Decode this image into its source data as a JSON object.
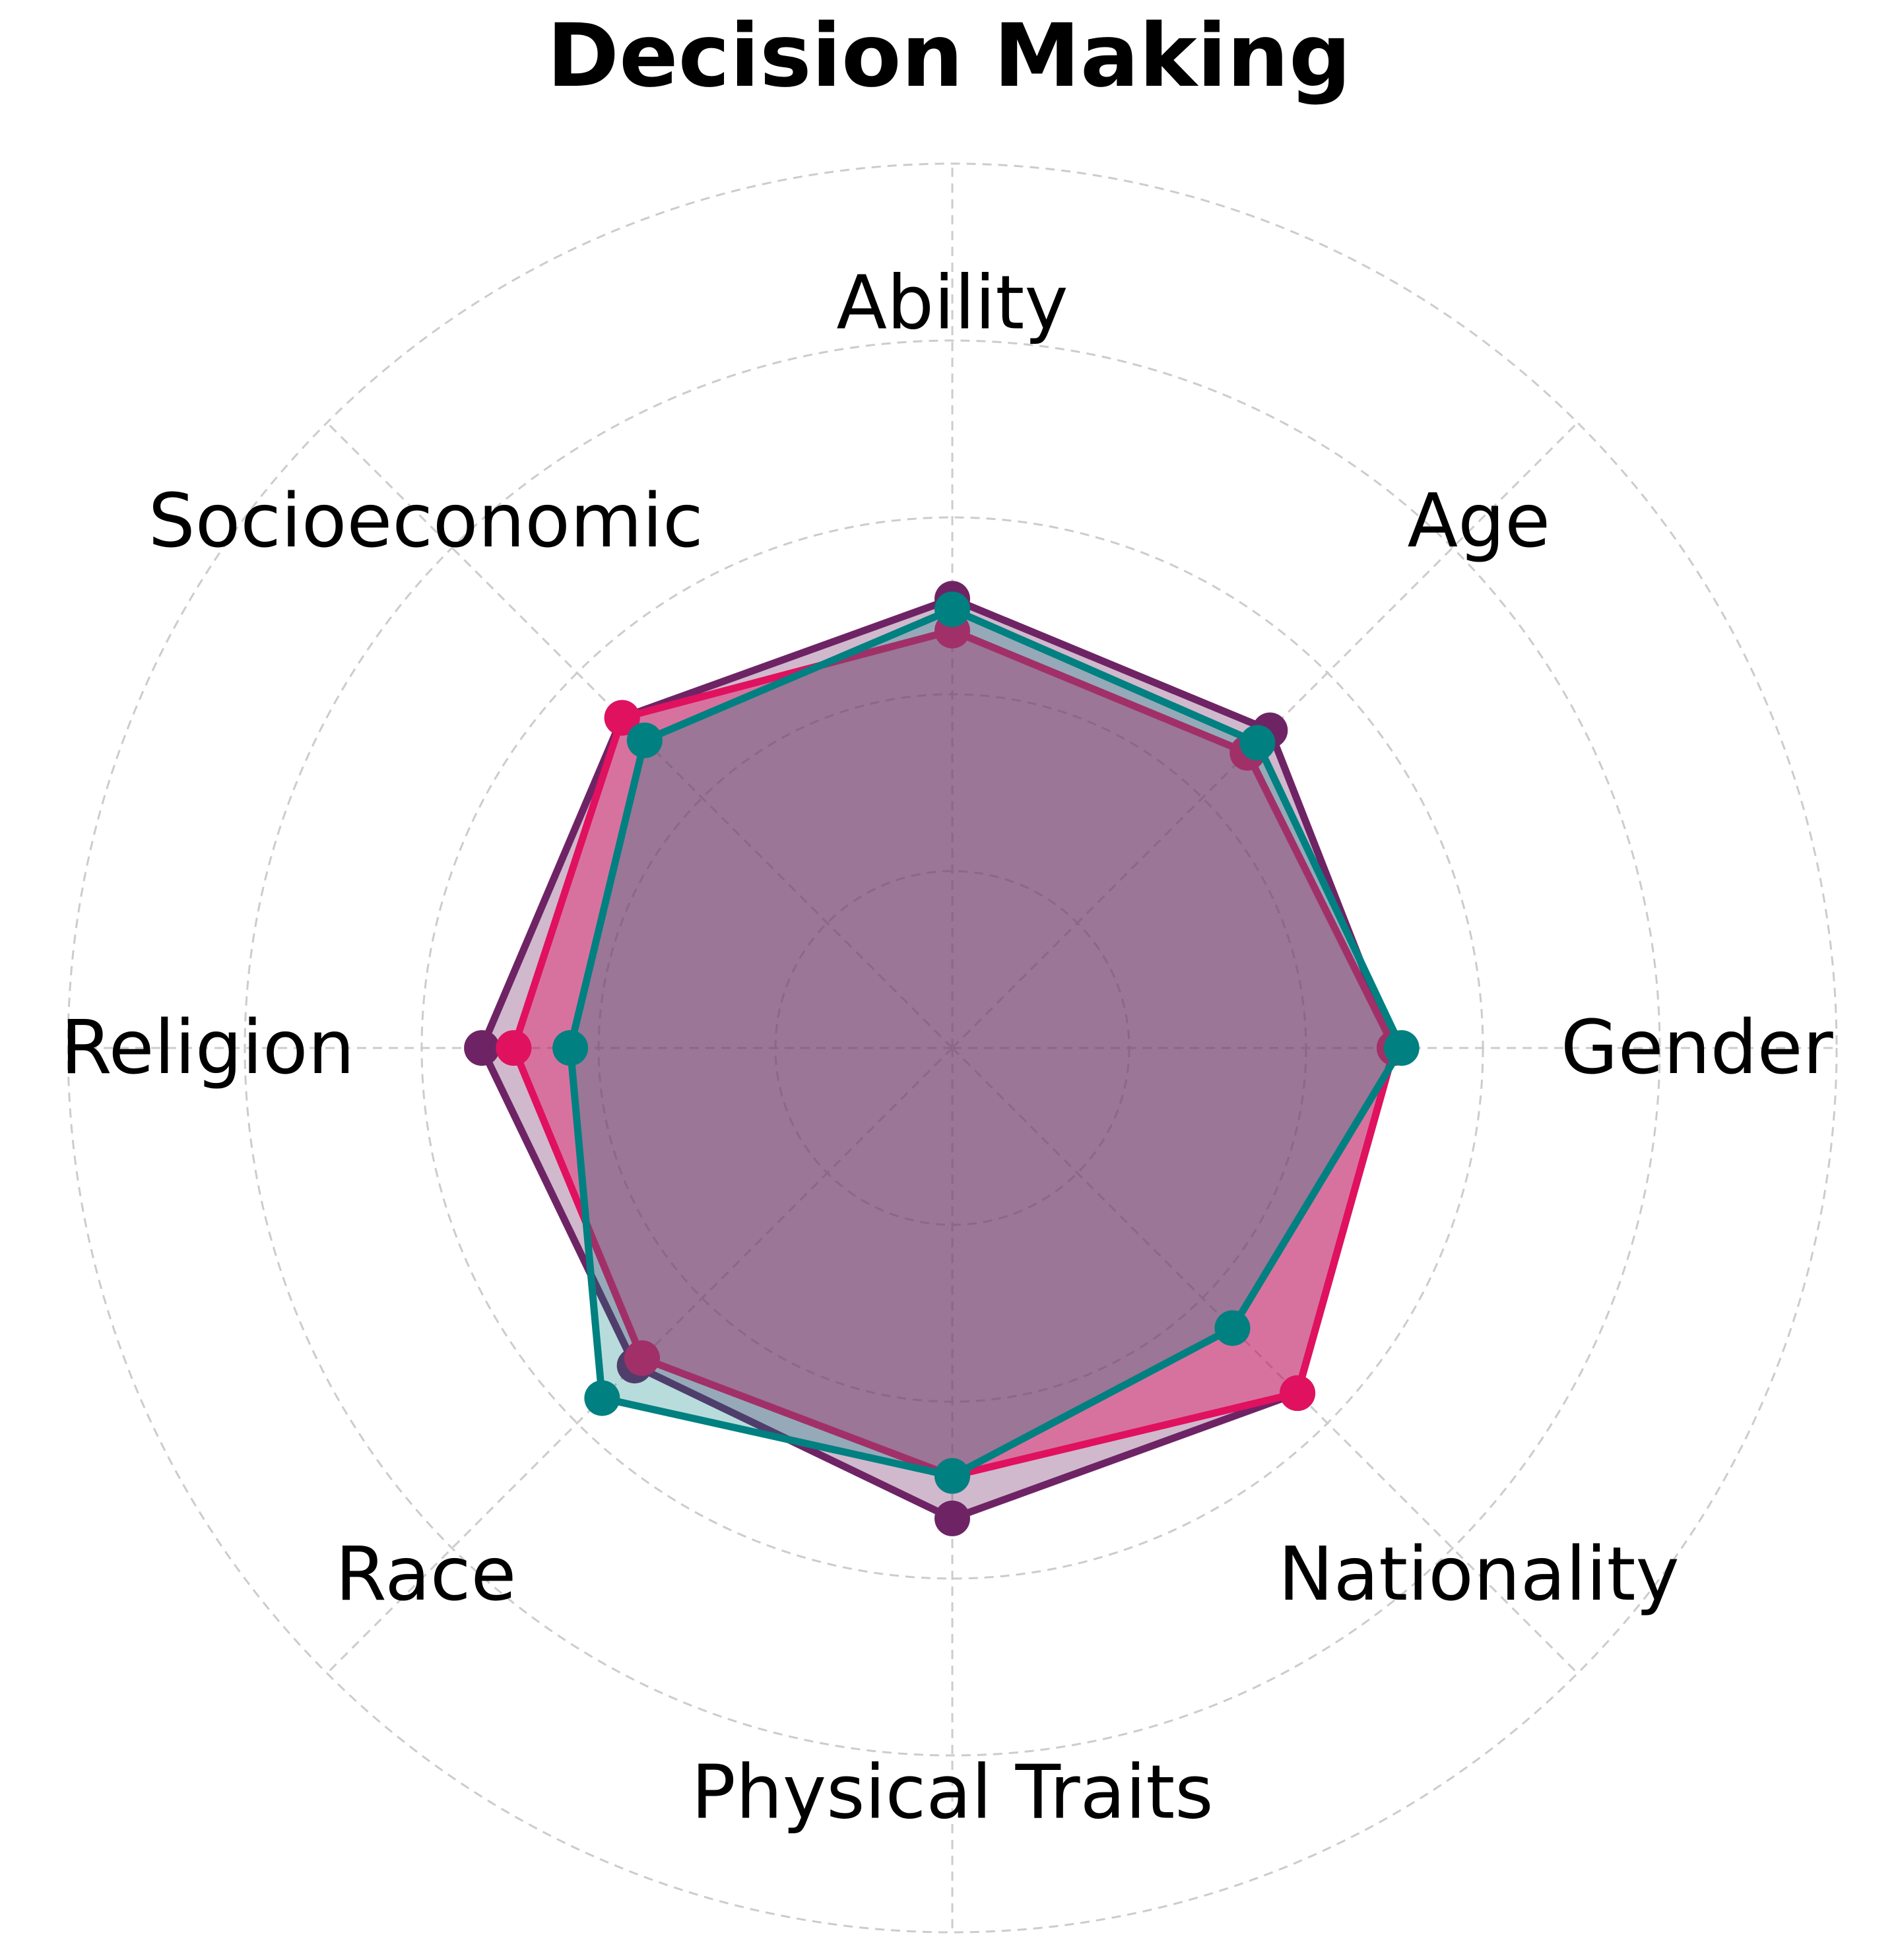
{
  "chart_data": {
    "type": "radar",
    "title": "Decision Making",
    "categories": [
      "Ability",
      "Age",
      "Gender",
      "Nationality",
      "Physical Traits",
      "Race",
      "Religion",
      "Socioeconomic"
    ],
    "rlim": [
      0,
      2.5
    ],
    "r_ticks": [
      0.5,
      1.0,
      1.5,
      2.0,
      2.5
    ],
    "grid": true,
    "legend": "none",
    "series": [
      {
        "values": [
          1.27,
          1.27,
          1.25,
          1.38,
          1.33,
          1.27,
          1.33,
          1.32
        ],
        "color": "#6e2464"
      },
      {
        "values": [
          1.18,
          1.18,
          1.25,
          1.38,
          1.21,
          1.24,
          1.24,
          1.32
        ],
        "color": "#e0115f"
      },
      {
        "values": [
          1.24,
          1.22,
          1.27,
          1.12,
          1.21,
          1.4,
          1.08,
          1.23
        ],
        "color": "#008080"
      }
    ]
  }
}
